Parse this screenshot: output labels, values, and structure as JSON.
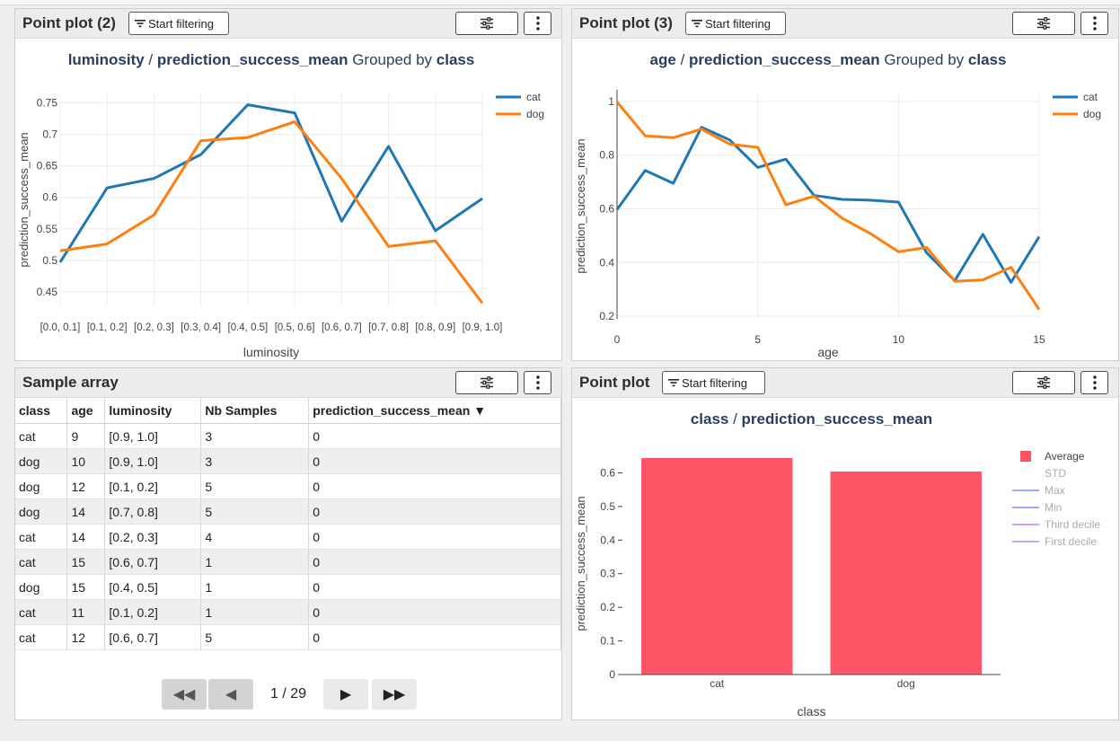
{
  "panels": {
    "lum": {
      "title": "Point plot (2)",
      "filter_label": "Start filtering",
      "chart_data": {
        "type": "line",
        "title_parts": [
          "luminosity",
          " / ",
          "prediction_success_mean",
          " Grouped by ",
          "class"
        ],
        "xlabel": "luminosity",
        "ylabel": "prediction_success_mean",
        "categories": [
          "[0.0, 0.1]",
          "[0.1, 0.2]",
          "[0.2, 0.3]",
          "[0.3, 0.4]",
          "[0.4, 0.5]",
          "[0.5, 0.6]",
          "[0.6, 0.7]",
          "[0.7, 0.8]",
          "[0.8, 0.9]",
          "[0.9, 1.0]"
        ],
        "ylim": [
          0.427,
          0.765
        ],
        "yticks": [
          0.45,
          0.5,
          0.55,
          0.6,
          0.65,
          0.7,
          0.75
        ],
        "grid": true,
        "legend_position": "top-right",
        "series": [
          {
            "name": "cat",
            "color": "#1f77b4",
            "values": [
              0.497,
              0.615,
              0.63,
              0.668,
              0.747,
              0.734,
              0.562,
              0.681,
              0.547,
              0.598
            ]
          },
          {
            "name": "dog",
            "color": "#ff7f0e",
            "values": [
              0.515,
              0.526,
              0.572,
              0.69,
              0.695,
              0.72,
              0.63,
              0.522,
              0.531,
              0.432
            ]
          }
        ]
      }
    },
    "age": {
      "title": "Point plot (3)",
      "filter_label": "Start filtering",
      "chart_data": {
        "type": "line",
        "title_parts": [
          "age",
          " / ",
          "prediction_success_mean",
          " Grouped by ",
          "class"
        ],
        "xlabel": "age",
        "ylabel": "prediction_success_mean",
        "xlim": [
          0,
          15
        ],
        "xticks": [
          0,
          5,
          10,
          15
        ],
        "ylim": [
          0.19,
          1.03
        ],
        "yticks": [
          0.2,
          0.4,
          0.6,
          0.8,
          1
        ],
        "grid": true,
        "legend_position": "top-right",
        "series": [
          {
            "name": "cat",
            "color": "#1f77b4",
            "x": [
              0,
              1,
              2,
              3,
              4,
              5,
              6,
              7,
              8,
              9,
              10,
              11,
              12,
              13,
              14,
              15
            ],
            "values": [
              0.597,
              0.743,
              0.695,
              0.904,
              0.857,
              0.754,
              0.785,
              0.65,
              0.635,
              0.632,
              0.625,
              0.436,
              0.332,
              0.505,
              0.326,
              0.496
            ]
          },
          {
            "name": "dog",
            "color": "#ff7f0e",
            "x": [
              0,
              1,
              2,
              3,
              4,
              5,
              6,
              7,
              8,
              9,
              10,
              11,
              12,
              13,
              14,
              15
            ],
            "values": [
              0.998,
              0.872,
              0.865,
              0.897,
              0.841,
              0.829,
              0.615,
              0.647,
              0.565,
              0.508,
              0.44,
              0.456,
              0.33,
              0.335,
              0.382,
              0.225
            ]
          }
        ]
      }
    },
    "sample": {
      "title": "Sample array",
      "columns": [
        "class",
        "age",
        "luminosity",
        "Nb Samples",
        "prediction_success_mean ▼"
      ],
      "rows": [
        [
          "cat",
          "9",
          "[0.9, 1.0]",
          "3",
          "0"
        ],
        [
          "dog",
          "10",
          "[0.9, 1.0]",
          "3",
          "0"
        ],
        [
          "dog",
          "12",
          "[0.1, 0.2]",
          "5",
          "0"
        ],
        [
          "dog",
          "14",
          "[0.7, 0.8]",
          "5",
          "0"
        ],
        [
          "cat",
          "14",
          "[0.2, 0.3]",
          "4",
          "0"
        ],
        [
          "cat",
          "15",
          "[0.6, 0.7]",
          "1",
          "0"
        ],
        [
          "dog",
          "15",
          "[0.4, 0.5]",
          "1",
          "0"
        ],
        [
          "cat",
          "11",
          "[0.1, 0.2]",
          "1",
          "0"
        ],
        [
          "cat",
          "12",
          "[0.6, 0.7]",
          "5",
          "0"
        ]
      ],
      "pager": {
        "first": "◀◀",
        "prev": "◀",
        "page": "1 / 29",
        "next": "▶",
        "last": "▶▶"
      }
    },
    "cls": {
      "title": "Point plot",
      "filter_label": "Start filtering",
      "chart_data": {
        "type": "bar",
        "title_parts": [
          "class",
          " / ",
          "prediction_success_mean",
          "",
          ""
        ],
        "xlabel": "class",
        "ylabel": "prediction_success_mean",
        "categories": [
          "cat",
          "dog"
        ],
        "ylim": [
          0,
          0.66
        ],
        "yticks": [
          0,
          0.1,
          0.2,
          0.3,
          0.4,
          0.5,
          0.6
        ],
        "grid": false,
        "legend_position": "top-right",
        "series": [
          {
            "name": "Average",
            "color": "#ff5464",
            "values": [
              0.644,
              0.604
            ]
          }
        ],
        "legend": [
          {
            "name": "Average",
            "color": "#ff5464",
            "symbol": "square",
            "active": true
          },
          {
            "name": "STD",
            "color": "#888888",
            "symbol": "none",
            "active": false
          },
          {
            "name": "Max",
            "color": "#636efa",
            "symbol": "line",
            "active": false
          },
          {
            "name": "Min",
            "color": "#636efa",
            "symbol": "line",
            "active": false
          },
          {
            "name": "Third decile",
            "color": "#ab63fa",
            "symbol": "line",
            "active": false
          },
          {
            "name": "First decile",
            "color": "#ab63fa",
            "symbol": "line",
            "active": false
          }
        ]
      }
    }
  }
}
